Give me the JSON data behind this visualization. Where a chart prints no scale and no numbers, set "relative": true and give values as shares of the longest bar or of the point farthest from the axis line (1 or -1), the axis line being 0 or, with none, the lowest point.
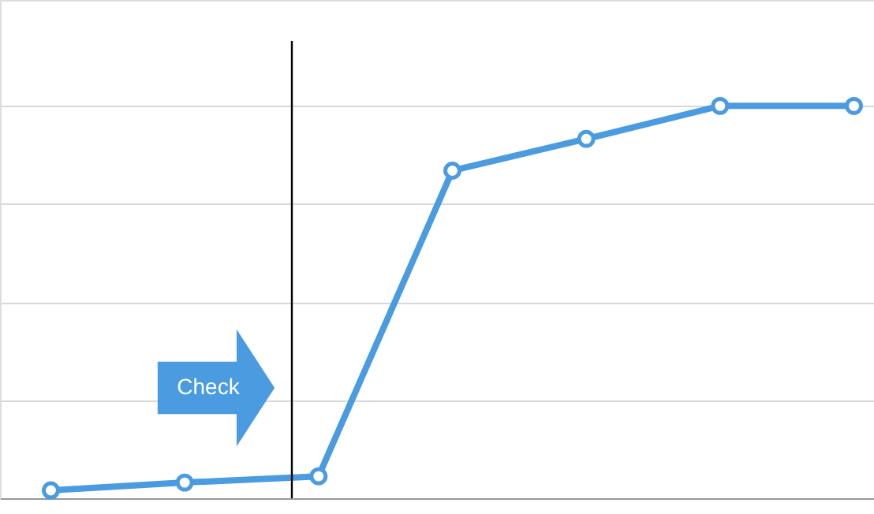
{
  "chart_data": {
    "type": "line",
    "relative": true,
    "categories": [
      null,
      null,
      null,
      null,
      null,
      null,
      null
    ],
    "values": [
      0.02,
      0.04,
      0.056,
      0.835,
      0.916,
      1,
      1
    ],
    "color": "#4a9be0",
    "marker": "circle",
    "line_style": "solid",
    "grid": "y",
    "annotations": [
      "Check"
    ]
  }
}
